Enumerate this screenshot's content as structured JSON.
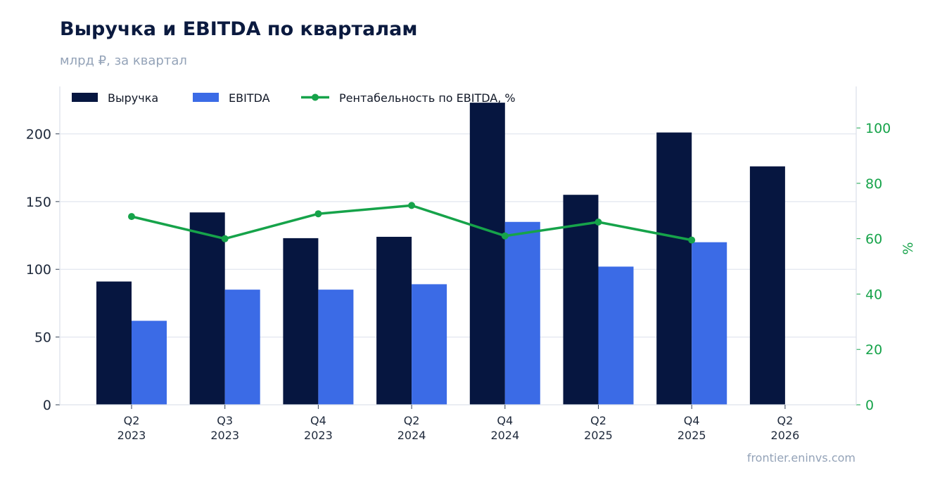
{
  "header": {
    "title": "Выручка и EBITDA по кварталам",
    "subtitle": "млрд ₽, за квартал"
  },
  "footer": {
    "source": "frontier.eninvs.com"
  },
  "colors": {
    "revenue": "#061640",
    "ebitda": "#3b6be6",
    "margin": "#16a34a",
    "grid": "#e2e6ef",
    "axis": "#dde2ea"
  },
  "chart_data": {
    "type": "bar",
    "categories": [
      [
        "Q2",
        "2023"
      ],
      [
        "Q3",
        "2023"
      ],
      [
        "Q4",
        "2023"
      ],
      [
        "Q2",
        "2024"
      ],
      [
        "Q4",
        "2024"
      ],
      [
        "Q2",
        "2025"
      ],
      [
        "Q4",
        "2025"
      ],
      [
        "Q2",
        "2026"
      ]
    ],
    "series": [
      {
        "name": "Выручка",
        "kind": "bar",
        "axis": "left",
        "values": [
          91,
          142,
          123,
          124,
          223,
          155,
          201,
          176
        ]
      },
      {
        "name": "EBITDA",
        "kind": "bar",
        "axis": "left",
        "values": [
          62,
          85,
          85,
          89,
          135,
          102,
          120,
          null
        ]
      },
      {
        "name": "Рентабельность по EBITDA, %",
        "kind": "line",
        "axis": "right",
        "values": [
          68,
          60,
          69,
          72,
          61,
          66,
          59.5,
          null
        ]
      }
    ],
    "ylim": [
      0,
      235
    ],
    "y_ticks": [
      0,
      50,
      100,
      150,
      200
    ],
    "y2lim": [
      0,
      115
    ],
    "y2_ticks": [
      0,
      20,
      40,
      60,
      80,
      100
    ],
    "y2label": "%",
    "grid": true,
    "legend": "top-left"
  }
}
